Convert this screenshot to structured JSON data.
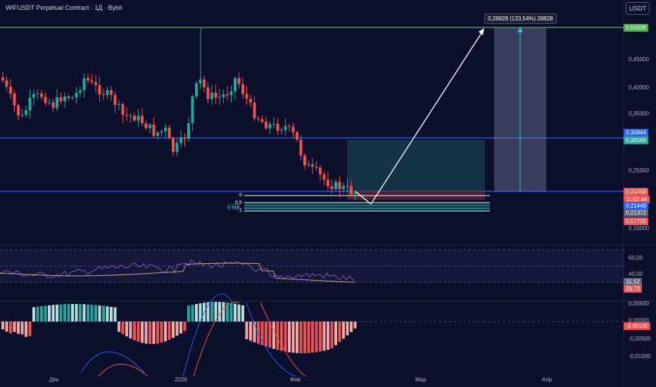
{
  "header": {
    "title": "WIFUSDT Perpetual Contract · 1Д · Bybit"
  },
  "toolbar": {
    "currency": "USDT"
  },
  "price_axis": {
    "ticks": [
      "0,45000",
      "0,40000",
      "0,35000",
      "0,25000",
      "0,15000"
    ],
    "tags": {
      "target": "0,50508",
      "resistance_top": "0,30844",
      "resistance_bottom": "0,30569",
      "current_price": "0,21458",
      "countdown": "11:02:46",
      "level_a": "0,21449",
      "level_b": "0,21372",
      "stop": "0,17733"
    }
  },
  "rsi_axis": {
    "ticks": [
      "60,00",
      "40,00"
    ],
    "value_a": "31,52",
    "value_b": "29,73"
  },
  "macd_axis": {
    "ticks": [
      "0,00500",
      "0,00000",
      "-0,00500",
      "-0,01000"
    ],
    "value": "-0,00105"
  },
  "time_axis": {
    "labels": [
      "Дек",
      "2026",
      "Фев",
      "Мар",
      "Апр"
    ]
  },
  "measure_label": "0,28828 (133,54%) 28828",
  "fib_levels": [
    "0",
    "0.5",
    "0.618",
    "0.786",
    "1"
  ],
  "colors": {
    "bg": "#0c0f2c",
    "up": "#26a69a",
    "down": "#ef5350",
    "blue_line": "#2962ff",
    "green_line": "#4caf50"
  }
}
